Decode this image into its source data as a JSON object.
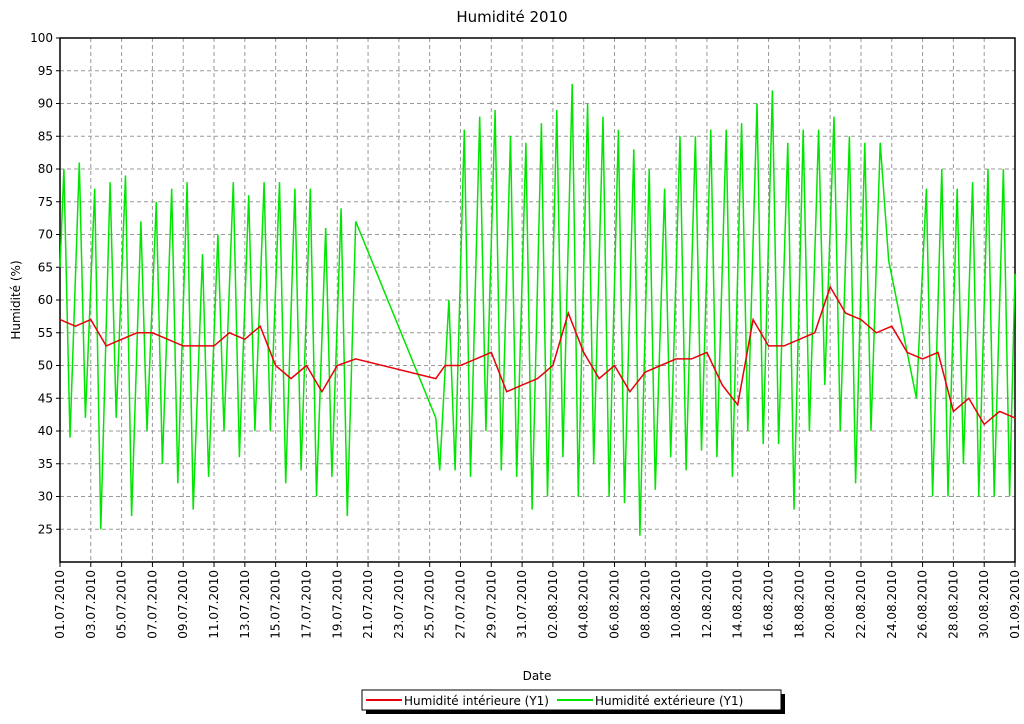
{
  "chart_data": {
    "type": "line",
    "title": "Humidité 2010",
    "xlabel": "Date",
    "ylabel": "Humidité (%)",
    "xlim": [
      0,
      62
    ],
    "ylim": [
      20,
      100
    ],
    "grid": true,
    "legend": "bottom",
    "xticks": [
      {
        "value": 0,
        "label": "01.07.2010"
      },
      {
        "value": 2,
        "label": "03.07.2010"
      },
      {
        "value": 4,
        "label": "05.07.2010"
      },
      {
        "value": 6,
        "label": "07.07.2010"
      },
      {
        "value": 8,
        "label": "09.07.2010"
      },
      {
        "value": 10,
        "label": "11.07.2010"
      },
      {
        "value": 12,
        "label": "13.07.2010"
      },
      {
        "value": 14,
        "label": "15.07.2010"
      },
      {
        "value": 16,
        "label": "17.07.2010"
      },
      {
        "value": 18,
        "label": "19.07.2010"
      },
      {
        "value": 20,
        "label": "21.07.2010"
      },
      {
        "value": 22,
        "label": "23.07.2010"
      },
      {
        "value": 24,
        "label": "25.07.2010"
      },
      {
        "value": 26,
        "label": "27.07.2010"
      },
      {
        "value": 28,
        "label": "29.07.2010"
      },
      {
        "value": 30,
        "label": "31.07.2010"
      },
      {
        "value": 32,
        "label": "02.08.2010"
      },
      {
        "value": 34,
        "label": "04.08.2010"
      },
      {
        "value": 36,
        "label": "06.08.2010"
      },
      {
        "value": 38,
        "label": "08.08.2010"
      },
      {
        "value": 40,
        "label": "10.08.2010"
      },
      {
        "value": 42,
        "label": "12.08.2010"
      },
      {
        "value": 44,
        "label": "14.08.2010"
      },
      {
        "value": 46,
        "label": "16.08.2010"
      },
      {
        "value": 48,
        "label": "18.08.2010"
      },
      {
        "value": 50,
        "label": "20.08.2010"
      },
      {
        "value": 52,
        "label": "22.08.2010"
      },
      {
        "value": 54,
        "label": "24.08.2010"
      },
      {
        "value": 56,
        "label": "26.08.2010"
      },
      {
        "value": 58,
        "label": "28.08.2010"
      },
      {
        "value": 60,
        "label": "30.08.2010"
      },
      {
        "value": 62,
        "label": "01.09.2010"
      }
    ],
    "yticks": [
      25,
      30,
      35,
      40,
      45,
      50,
      55,
      60,
      65,
      70,
      75,
      80,
      85,
      90,
      95,
      100
    ],
    "series": [
      {
        "name": "Humidité intérieure (Y1)",
        "color": "#e8000b",
        "x": [
          0,
          1,
          2,
          3,
          4,
          5,
          6,
          7,
          8,
          9,
          10,
          11,
          12,
          13,
          14,
          15,
          16,
          17,
          18,
          19.2,
          24.4,
          25,
          26,
          27,
          28,
          29,
          30,
          31,
          32,
          33,
          34,
          35,
          36,
          37,
          38,
          39,
          40,
          41,
          42,
          43,
          44,
          45,
          46,
          47,
          48,
          49,
          50,
          51,
          52,
          53,
          54,
          55,
          56,
          57,
          58,
          59,
          60,
          61,
          62
        ],
        "values": [
          57,
          56,
          57,
          53,
          54,
          55,
          55,
          54,
          53,
          53,
          53,
          55,
          54,
          56,
          50,
          48,
          50,
          46,
          50,
          51,
          48,
          50,
          50,
          51,
          52,
          46,
          47,
          48,
          50,
          58,
          52,
          48,
          50,
          46,
          49,
          50,
          51,
          51,
          52,
          47,
          44,
          57,
          53,
          53,
          54,
          55,
          62,
          58,
          57,
          55,
          56,
          52,
          51,
          52,
          43,
          45,
          41,
          43,
          42
        ]
      },
      {
        "name": "Humidité extérieure (Y1)",
        "color": "#00e600",
        "x": [
          0,
          0.25,
          0.65,
          1.25,
          1.65,
          2.25,
          2.65,
          3.25,
          3.65,
          4.25,
          4.65,
          5.25,
          5.65,
          6.25,
          6.65,
          7.25,
          7.65,
          8.25,
          8.65,
          9.25,
          9.65,
          10.25,
          10.65,
          11.25,
          11.65,
          12.25,
          12.65,
          13.25,
          13.65,
          14.25,
          14.65,
          15.25,
          15.65,
          16.25,
          16.65,
          17.25,
          17.65,
          18.25,
          18.65,
          19.2,
          24.4,
          24.65,
          25.25,
          25.65,
          26.25,
          26.65,
          27.25,
          27.65,
          28.25,
          28.65,
          29.25,
          29.65,
          30.25,
          30.65,
          31.25,
          31.65,
          32.25,
          32.65,
          33.25,
          33.65,
          34.25,
          34.65,
          35.25,
          35.65,
          36.25,
          36.65,
          37.25,
          37.65,
          38.25,
          38.65,
          39.25,
          39.65,
          40.25,
          40.65,
          41.25,
          41.65,
          42.25,
          42.65,
          43.25,
          43.65,
          44.25,
          44.65,
          45.25,
          45.65,
          46.25,
          46.65,
          47.25,
          47.65,
          48.25,
          48.65,
          49.25,
          49.65,
          50.25,
          50.65,
          51.25,
          51.65,
          52.25,
          52.65,
          53.25,
          53.8,
          55.6,
          56.25,
          56.65,
          57.25,
          57.65,
          58.25,
          58.65,
          59.25,
          59.65,
          60.25,
          60.65,
          61.25,
          61.65,
          62
        ],
        "values": [
          65,
          80,
          39,
          81,
          42,
          77,
          25,
          78,
          42,
          79,
          27,
          72,
          40,
          75,
          35,
          77,
          32,
          78,
          28,
          67,
          33,
          70,
          40,
          78,
          36,
          76,
          40,
          78,
          40,
          78,
          32,
          77,
          34,
          77,
          30,
          71,
          33,
          74,
          27,
          72,
          42,
          34,
          60,
          34,
          86,
          33,
          88,
          40,
          89,
          34,
          85,
          33,
          84,
          28,
          87,
          30,
          89,
          36,
          93,
          30,
          90,
          35,
          88,
          30,
          86,
          29,
          83,
          24,
          80,
          31,
          77,
          36,
          85,
          34,
          85,
          37,
          86,
          36,
          86,
          33,
          87,
          40,
          90,
          38,
          92,
          38,
          84,
          28,
          86,
          40,
          86,
          47,
          88,
          40,
          85,
          32,
          84,
          40,
          84,
          66,
          45,
          77,
          30,
          80,
          30,
          77,
          35,
          78,
          30,
          80,
          30,
          80,
          30,
          64
        ]
      }
    ]
  }
}
